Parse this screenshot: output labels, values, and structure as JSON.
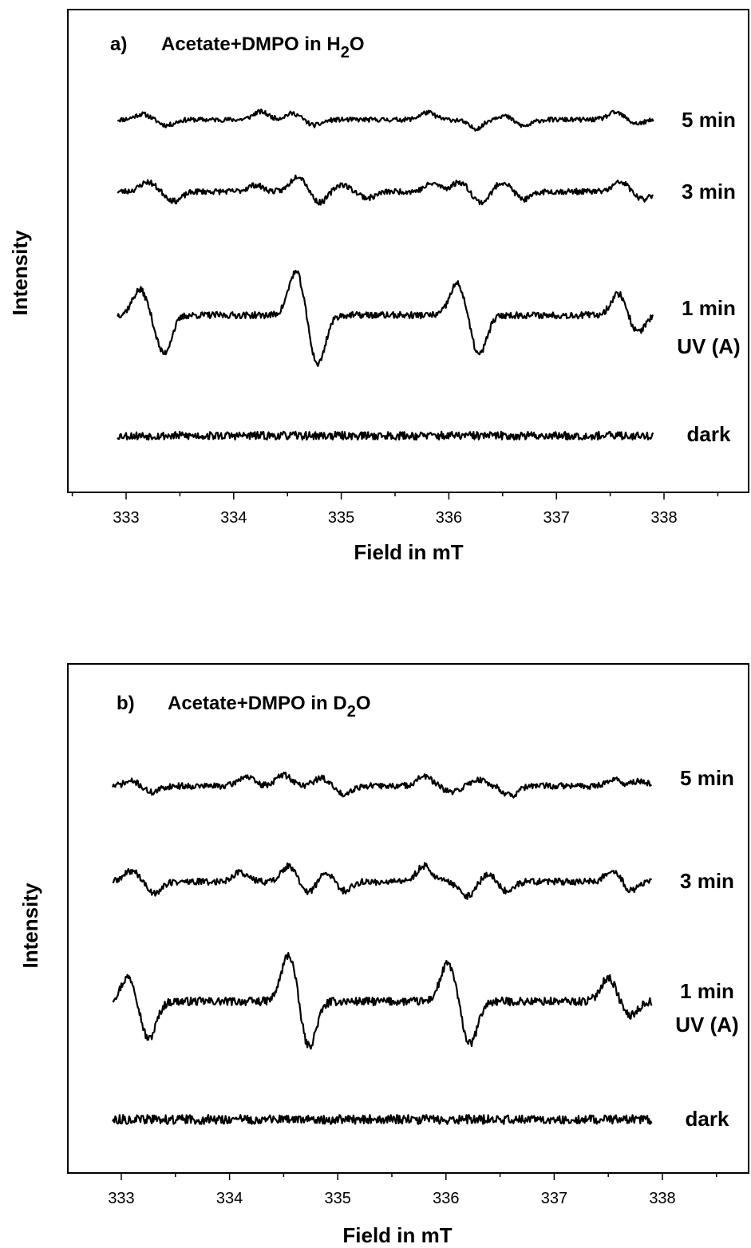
{
  "chart_data": [
    {
      "type": "line",
      "panel_letter": "a)",
      "title": {
        "text": "Acetate+DMPO in H",
        "sub": "2",
        "after": "O"
      },
      "xlabel": "Field in mT",
      "ylabel": "Intensity",
      "xlim": [
        332.5,
        338.8
      ],
      "xticks": [
        "333",
        "334",
        "335",
        "336",
        "337",
        "338"
      ],
      "x_range": [
        332.92,
        337.9
      ],
      "series": [
        {
          "key": "5min",
          "labels": [
            "5 min"
          ],
          "noise": 0.9,
          "seed": 11,
          "events": [
            [
              333.15,
              7
            ],
            [
              333.38,
              -7
            ],
            [
              334.25,
              10
            ],
            [
              334.55,
              8
            ],
            [
              334.75,
              -7
            ],
            [
              335.8,
              9
            ],
            [
              336.25,
              -11
            ],
            [
              336.5,
              5
            ],
            [
              336.7,
              -8
            ],
            [
              337.55,
              9
            ],
            [
              337.75,
              -5
            ]
          ]
        },
        {
          "key": "3min",
          "labels": [
            "3 min"
          ],
          "noise": 1.1,
          "seed": 23,
          "events": [
            [
              333.2,
              12
            ],
            [
              333.45,
              -12
            ],
            [
              334.2,
              8
            ],
            [
              334.6,
              20
            ],
            [
              334.8,
              -14
            ],
            [
              335.0,
              9
            ],
            [
              335.25,
              -8
            ],
            [
              335.85,
              10
            ],
            [
              336.1,
              12
            ],
            [
              336.3,
              -14
            ],
            [
              336.5,
              12
            ],
            [
              336.7,
              -10
            ],
            [
              337.6,
              12
            ],
            [
              337.8,
              -10
            ]
          ]
        },
        {
          "key": "1min",
          "labels": [
            "1 min",
            "UV (A)"
          ],
          "noise": 1.3,
          "seed": 37,
          "events": [
            [
              333.13,
              32
            ],
            [
              333.35,
              -48
            ],
            [
              334.58,
              55
            ],
            [
              334.78,
              -62
            ],
            [
              336.08,
              40
            ],
            [
              336.28,
              -50
            ],
            [
              337.58,
              28
            ],
            [
              337.75,
              -22
            ]
          ]
        },
        {
          "key": "dark",
          "labels": [
            "dark"
          ],
          "noise": 1.6,
          "seed": 53,
          "events": []
        }
      ]
    },
    {
      "type": "line",
      "panel_letter": "b)",
      "title": {
        "text": "Acetate+DMPO in D",
        "sub": "2",
        "after": "O"
      },
      "xlabel": "Field in mT",
      "ylabel": "Intensity",
      "xlim": [
        332.5,
        338.8
      ],
      "xticks": [
        "333",
        "334",
        "335",
        "336",
        "337",
        "338"
      ],
      "x_range": [
        332.92,
        337.9
      ],
      "series": [
        {
          "key": "5min",
          "labels": [
            "5 min"
          ],
          "noise": 1.2,
          "seed": 71,
          "events": [
            [
              333.1,
              6
            ],
            [
              333.28,
              -8
            ],
            [
              334.15,
              12
            ],
            [
              334.5,
              14
            ],
            [
              334.85,
              10
            ],
            [
              335.05,
              -10
            ],
            [
              335.8,
              12
            ],
            [
              336.05,
              -8
            ],
            [
              336.3,
              8
            ],
            [
              336.6,
              -12
            ],
            [
              337.55,
              8
            ],
            [
              337.8,
              6
            ]
          ]
        },
        {
          "key": "3min",
          "labels": [
            "3 min"
          ],
          "noise": 1.3,
          "seed": 89,
          "events": [
            [
              333.1,
              14
            ],
            [
              333.3,
              -14
            ],
            [
              334.1,
              12
            ],
            [
              334.55,
              20
            ],
            [
              334.72,
              -14
            ],
            [
              334.9,
              12
            ],
            [
              335.05,
              -12
            ],
            [
              335.8,
              20
            ],
            [
              336.2,
              -18
            ],
            [
              336.4,
              10
            ],
            [
              336.55,
              -12
            ],
            [
              337.55,
              16
            ],
            [
              337.7,
              -12
            ]
          ]
        },
        {
          "key": "1min",
          "labels": [
            "1 min",
            "UV (A)"
          ],
          "noise": 1.6,
          "seed": 97,
          "events": [
            [
              333.07,
              32
            ],
            [
              333.25,
              -48
            ],
            [
              334.55,
              60
            ],
            [
              334.73,
              -58
            ],
            [
              336.02,
              48
            ],
            [
              336.22,
              -54
            ],
            [
              337.5,
              30
            ],
            [
              337.7,
              -18
            ]
          ]
        },
        {
          "key": "dark",
          "labels": [
            "dark"
          ],
          "noise": 1.8,
          "seed": 113,
          "events": []
        }
      ]
    }
  ]
}
